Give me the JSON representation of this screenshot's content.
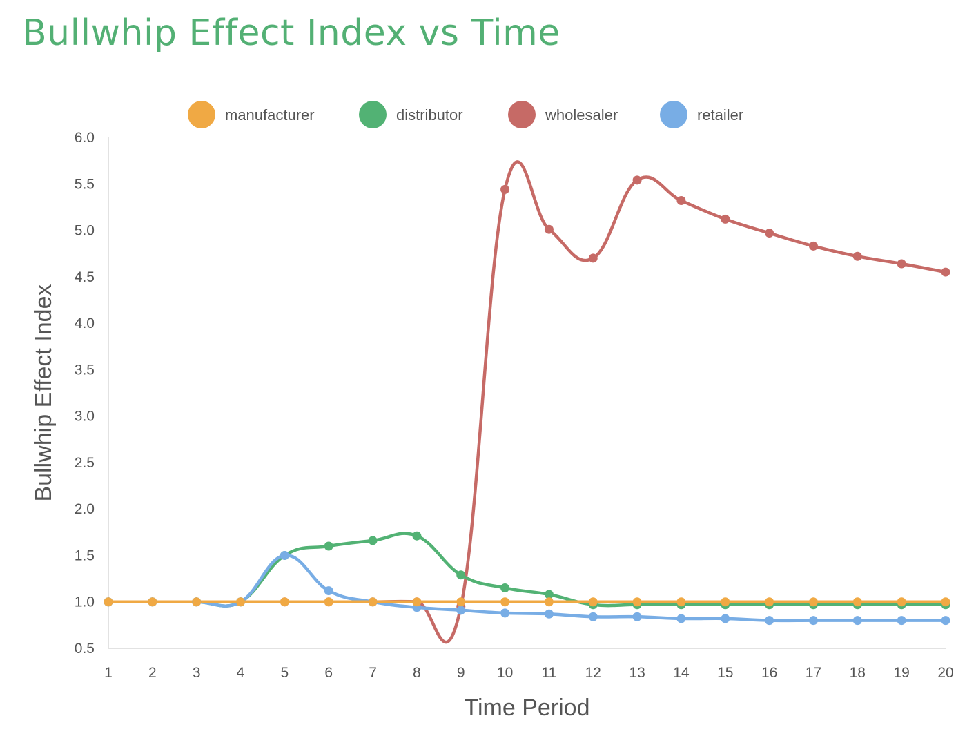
{
  "chart_data": {
    "type": "line",
    "title": "Bullwhip Effect Index vs Time",
    "xlabel": "Time Period",
    "ylabel": "Bullwhip Effect Index",
    "x": [
      1,
      2,
      3,
      4,
      5,
      6,
      7,
      8,
      9,
      10,
      11,
      12,
      13,
      14,
      15,
      16,
      17,
      18,
      19,
      20
    ],
    "ylim": [
      0.5,
      6.0
    ],
    "yticks": [
      "0.5",
      "1.0",
      "1.5",
      "2.0",
      "2.5",
      "3.0",
      "3.5",
      "4.0",
      "4.5",
      "5.0",
      "5.5",
      "6.0"
    ],
    "grid": false,
    "legend_position": "top",
    "series": [
      {
        "name": "manufacturer",
        "color": "#f0a944",
        "values": [
          1.0,
          1.0,
          1.0,
          1.0,
          1.0,
          1.0,
          1.0,
          1.0,
          1.0,
          1.0,
          1.0,
          1.0,
          1.0,
          1.0,
          1.0,
          1.0,
          1.0,
          1.0,
          1.0,
          1.0
        ]
      },
      {
        "name": "distributor",
        "color": "#52b274",
        "values": [
          1.0,
          1.0,
          1.0,
          1.0,
          1.5,
          1.6,
          1.66,
          1.71,
          1.29,
          1.15,
          1.08,
          0.97,
          0.97,
          0.97,
          0.97,
          0.97,
          0.97,
          0.97,
          0.97,
          0.97
        ]
      },
      {
        "name": "wholesaler",
        "color": "#c66a66",
        "values": [
          1.0,
          1.0,
          1.0,
          1.0,
          1.0,
          1.0,
          1.0,
          1.0,
          0.95,
          5.44,
          5.01,
          4.7,
          5.54,
          5.32,
          5.12,
          4.97,
          4.83,
          4.72,
          4.64,
          4.55
        ]
      },
      {
        "name": "retailer",
        "color": "#78ade5",
        "values": [
          1.0,
          1.0,
          1.0,
          1.0,
          1.5,
          1.12,
          1.0,
          0.94,
          0.91,
          0.88,
          0.87,
          0.84,
          0.84,
          0.82,
          0.82,
          0.8,
          0.8,
          0.8,
          0.8,
          0.8
        ]
      }
    ]
  }
}
